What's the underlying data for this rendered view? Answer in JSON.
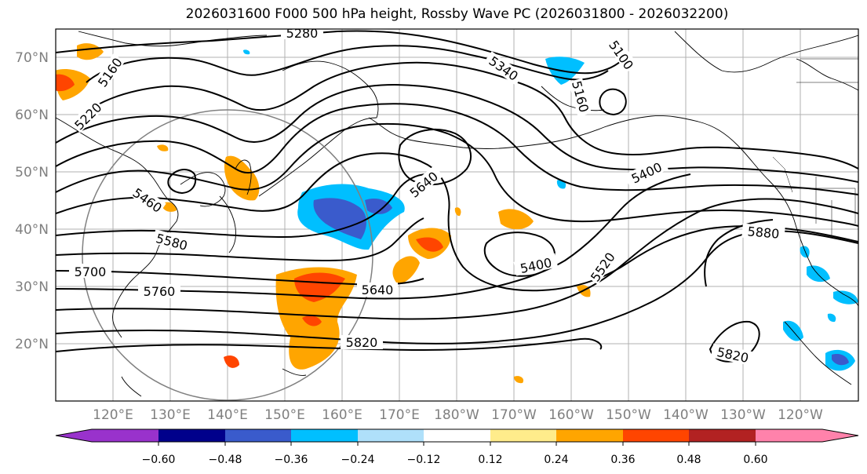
{
  "title": "2026031600 F000 500 hPa height, Rossby Wave PC (2026031800 - 2026032200)",
  "lat_labels": [
    "70°N",
    "60°N",
    "50°N",
    "40°N",
    "30°N",
    "20°N"
  ],
  "lon_labels": [
    "120°E",
    "130°E",
    "140°E",
    "150°E",
    "160°E",
    "170°E",
    "180°W",
    "170°W",
    "160°W",
    "150°W",
    "140°W",
    "130°W",
    "120°W"
  ],
  "contour_labels": [
    "5280",
    "5340",
    "5100",
    "5160",
    "5160",
    "5220",
    "5460",
    "5580",
    "5700",
    "5760",
    "5640",
    "5640",
    "5400",
    "5520",
    "5400",
    "5880",
    "5820",
    "5820"
  ],
  "colorbar": {
    "ticks": [
      "−0.60",
      "−0.48",
      "−0.36",
      "−0.24",
      "−0.12",
      "0.12",
      "0.24",
      "0.36",
      "0.48",
      "0.60"
    ],
    "colors": [
      "#9932cc",
      "#00008b",
      "#3a5bcc",
      "#00bfff",
      "#afe0fa",
      "#ffffff",
      "#ffec8b",
      "#ffa500",
      "#ff4500",
      "#b22222",
      "#ff82ab"
    ]
  }
}
